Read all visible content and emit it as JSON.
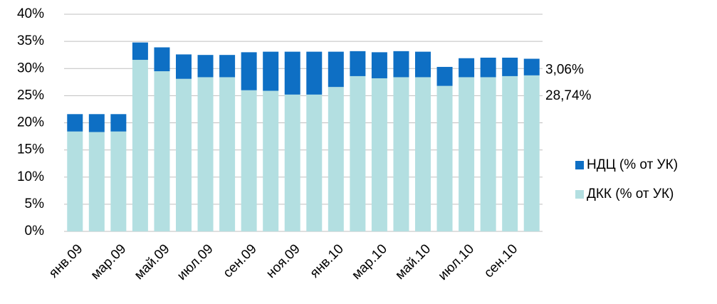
{
  "chart_data": {
    "type": "stacked_bar",
    "categories": [
      "янв.09",
      null,
      "мар.09",
      null,
      "май.09",
      null,
      "июл.09",
      null,
      "сен.09",
      null,
      "ноя.09",
      null,
      "янв.10",
      null,
      "мар.10",
      null,
      "май.10",
      null,
      "июл.10",
      null,
      "сен.10",
      null
    ],
    "series": [
      {
        "name": "ДКК (% от УК)",
        "color": "#b3dfe1",
        "values": [
          18.4,
          18.3,
          18.4,
          31.6,
          29.5,
          28.1,
          28.4,
          28.4,
          26.0,
          25.9,
          25.2,
          25.2,
          26.6,
          28.6,
          28.2,
          28.4,
          28.4,
          26.8,
          28.4,
          28.4,
          28.6,
          28.74
        ],
        "value_labels": [
          null,
          null,
          null,
          null,
          null,
          null,
          null,
          null,
          null,
          null,
          null,
          null,
          null,
          null,
          null,
          null,
          null,
          null,
          null,
          null,
          null,
          "28,74%"
        ]
      },
      {
        "name": "НДЦ (% от УК)",
        "color": "#0e6fc4",
        "values": [
          3.2,
          3.3,
          3.2,
          3.2,
          4.4,
          4.5,
          4.1,
          4.1,
          7.0,
          7.2,
          7.9,
          7.9,
          6.5,
          4.6,
          4.8,
          4.8,
          4.7,
          3.5,
          3.5,
          3.6,
          3.4,
          3.06
        ],
        "value_labels": [
          null,
          null,
          null,
          null,
          null,
          null,
          null,
          null,
          null,
          null,
          null,
          null,
          null,
          null,
          null,
          null,
          null,
          null,
          null,
          null,
          null,
          "3,06%"
        ]
      }
    ],
    "ylim": [
      0,
      40
    ],
    "yticks": [
      {
        "value": 0,
        "label": "0%"
      },
      {
        "value": 5,
        "label": "5%"
      },
      {
        "value": 10,
        "label": "10%"
      },
      {
        "value": 15,
        "label": "15%"
      },
      {
        "value": 20,
        "label": "20%"
      },
      {
        "value": 25,
        "label": "25%"
      },
      {
        "value": 30,
        "label": "30%"
      },
      {
        "value": 35,
        "label": "35%"
      },
      {
        "value": 40,
        "label": "40%"
      }
    ],
    "grid": true,
    "legend": "right"
  }
}
